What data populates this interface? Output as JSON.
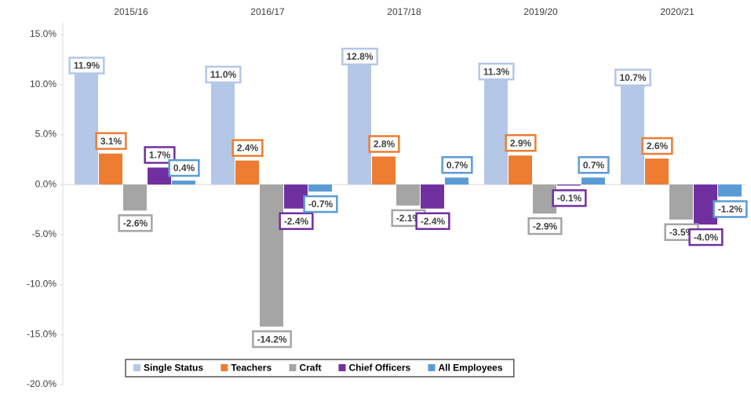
{
  "chart_data": {
    "type": "bar",
    "categories": [
      "2015/16",
      "2016/17",
      "2017/18",
      "2019/20",
      "2020/21"
    ],
    "series": [
      {
        "name": "Single Status",
        "color": "#b4c7e7",
        "values": [
          11.9,
          11.0,
          12.8,
          11.3,
          10.7
        ],
        "value_labels": [
          "11.9%",
          "11.0%",
          "12.8%",
          "11.3%",
          "10.7%"
        ]
      },
      {
        "name": "Teachers",
        "color": "#ed7d31",
        "values": [
          3.1,
          2.4,
          2.8,
          2.9,
          2.6
        ],
        "value_labels": [
          "3.1%",
          "2.4%",
          "2.8%",
          "2.9%",
          "2.6%"
        ]
      },
      {
        "name": "Craft",
        "color": "#a5a5a5",
        "values": [
          -2.6,
          -14.2,
          -2.1,
          -2.9,
          -3.5
        ],
        "value_labels": [
          "-2.6%",
          "-14.2%",
          "-2.1%",
          "-2.9%",
          "-3.5%"
        ]
      },
      {
        "name": "Chief Officers",
        "color": "#7030a0",
        "values": [
          1.7,
          -2.4,
          -2.4,
          -0.1,
          -4.0
        ],
        "value_labels": [
          "1.7%",
          "-2.4%",
          "-2.4%",
          "-0.1%",
          "-4.0%"
        ]
      },
      {
        "name": "All Employees",
        "color": "#5b9bd5",
        "values": [
          0.4,
          -0.7,
          0.7,
          0.7,
          -1.2
        ],
        "value_labels": [
          "0.4%",
          "-0.7%",
          "0.7%",
          "0.7%",
          "-1.2%"
        ]
      }
    ],
    "ylim": [
      -20,
      15
    ],
    "yticks": [
      {
        "value": -20,
        "label": "-20.0%"
      },
      {
        "value": -15,
        "label": "-15.0%"
      },
      {
        "value": -10,
        "label": "-10.0%"
      },
      {
        "value": -5,
        "label": "-5.0%"
      },
      {
        "value": 0,
        "label": "0.0%"
      },
      {
        "value": 5,
        "label": "5.0%"
      },
      {
        "value": 10,
        "label": "10.0%"
      },
      {
        "value": 15,
        "label": "15.0%"
      }
    ],
    "legend": "bottom"
  }
}
